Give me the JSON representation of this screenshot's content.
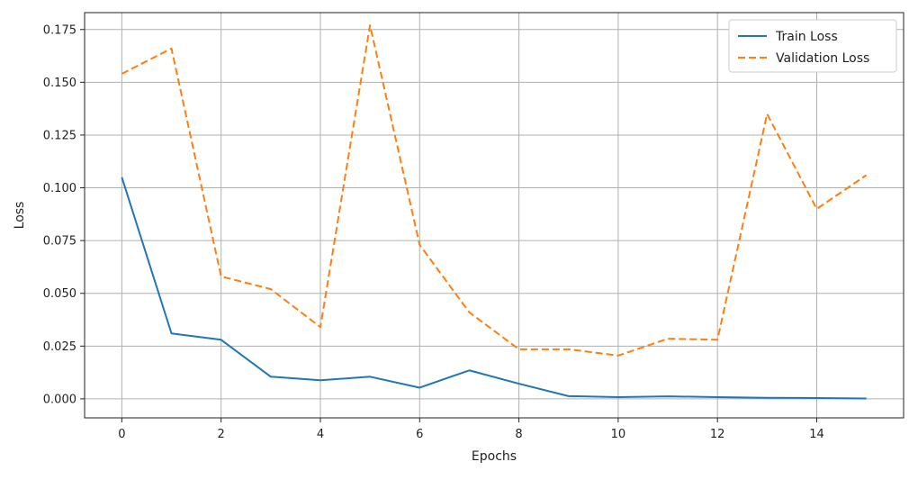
{
  "chart_data": {
    "type": "line",
    "title": "",
    "xlabel": "Epochs",
    "ylabel": "Loss",
    "x": [
      0,
      1,
      2,
      3,
      4,
      5,
      6,
      7,
      8,
      9,
      10,
      11,
      12,
      13,
      14,
      15
    ],
    "xlim": [
      -0.75,
      15.75
    ],
    "ylim": [
      -0.009,
      0.183
    ],
    "xticks": [
      0,
      2,
      4,
      6,
      8,
      10,
      12,
      14
    ],
    "yticks": [
      0.0,
      0.025,
      0.05,
      0.075,
      0.1,
      0.125,
      0.15,
      0.175
    ],
    "xtick_labels": [
      "0",
      "2",
      "4",
      "6",
      "8",
      "10",
      "12",
      "14"
    ],
    "ytick_labels": [
      "0.000",
      "0.025",
      "0.050",
      "0.075",
      "0.100",
      "0.125",
      "0.150",
      "0.175"
    ],
    "grid": true,
    "legend_position": "top-right",
    "series": [
      {
        "name": "Train Loss",
        "color": "#1f77b4",
        "style": "solid",
        "values": [
          0.105,
          0.031,
          0.028,
          0.0105,
          0.0088,
          0.0105,
          0.0053,
          0.0135,
          0.0072,
          0.0013,
          0.0008,
          0.0012,
          0.0008,
          0.0005,
          0.0004,
          0.0002
        ]
      },
      {
        "name": "Validation Loss",
        "color": "#ff7f0e",
        "style": "dashed",
        "values": [
          0.154,
          0.166,
          0.058,
          0.052,
          0.034,
          0.177,
          0.073,
          0.041,
          0.0235,
          0.0235,
          0.0205,
          0.0285,
          0.028,
          0.135,
          0.09,
          0.106
        ]
      }
    ]
  }
}
